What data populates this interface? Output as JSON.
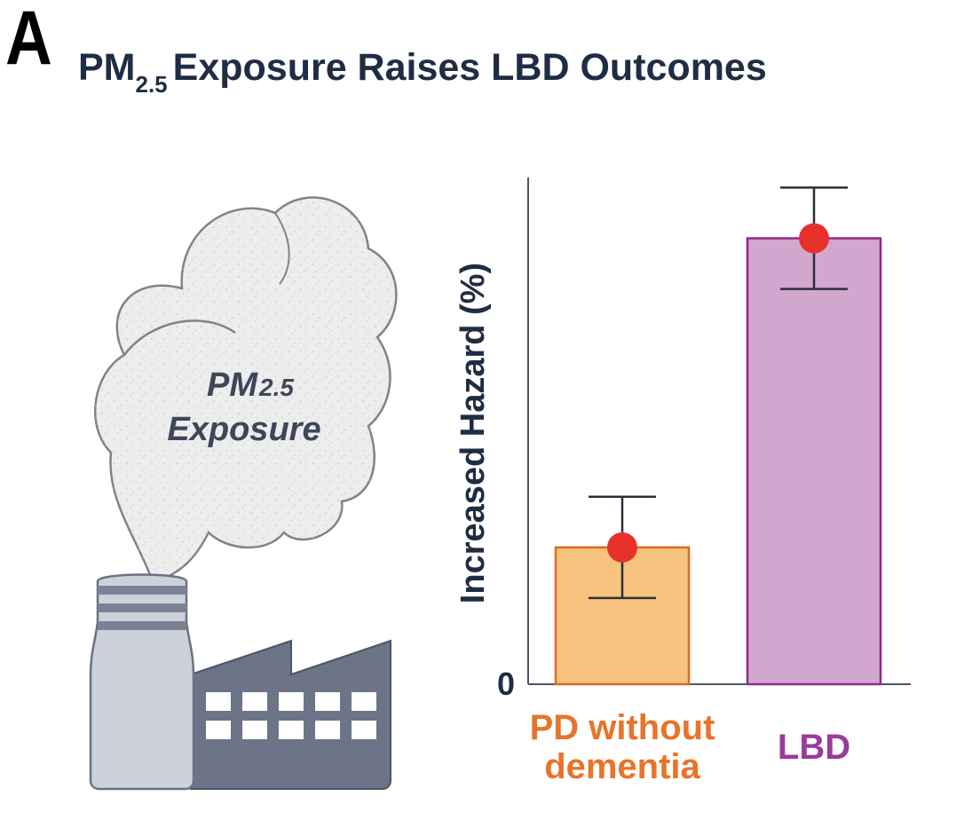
{
  "panel": {
    "letter": "A"
  },
  "header": {
    "title_prefix": "PM",
    "title_subscript": "2.5",
    "title_suffix": "Exposure Raises LBD Outcomes"
  },
  "illustration": {
    "cloud_line1": "PM",
    "cloud_line1_sub": "2.5",
    "cloud_line2": "Exposure"
  },
  "colors": {
    "bar_pd_fill": "#f8c27f",
    "bar_pd_stroke": "#e0691e",
    "bar_lbd_fill": "#d3a6cd",
    "bar_lbd_stroke": "#8e2a8f",
    "dot": "#e8302b",
    "axis": "#4b5566",
    "label_pd": "#e8742a",
    "label_lbd": "#9b3a9c",
    "text_dark": "#1f2d44"
  },
  "chart_data": {
    "type": "bar",
    "title": "PM2.5 Exposure Raises LBD Outcomes",
    "ylabel": "Increased Hazard (%)",
    "xlabel": "",
    "ytick_labels": [
      "0"
    ],
    "ylim": [
      0,
      100
    ],
    "categories": [
      "PD without dementia",
      "LBD"
    ],
    "category_lines": [
      [
        "PD without",
        "dementia"
      ],
      [
        "LBD"
      ]
    ],
    "values": [
      27,
      88
    ],
    "error_low": [
      17,
      78
    ],
    "error_high": [
      37,
      98
    ]
  }
}
